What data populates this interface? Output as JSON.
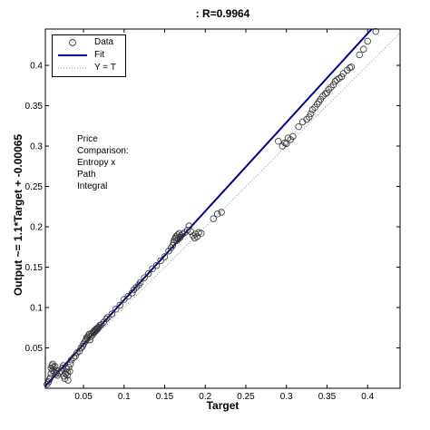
{
  "chart_data": {
    "type": "scatter",
    "title": ": R=0.9964",
    "xlabel": "Target",
    "ylabel": "Output ~= 1.1*Target + -0.00065",
    "xlim": [
      0.003,
      0.44
    ],
    "ylim": [
      0,
      0.445
    ],
    "x_ticks": [
      0.05,
      0.1,
      0.15,
      0.2,
      0.25,
      0.3,
      0.35,
      0.4
    ],
    "y_ticks": [
      0.05,
      0.1,
      0.15,
      0.2,
      0.25,
      0.3,
      0.35,
      0.4
    ],
    "x_tick_labels": [
      "0.05",
      "0.1",
      "0.15",
      "0.2",
      "0.25",
      "0.3",
      "0.35",
      "0.4"
    ],
    "y_tick_labels": [
      "0.05",
      "0.1",
      "0.15",
      "0.2",
      "0.25",
      "0.3",
      "0.35",
      "0.4"
    ],
    "grid": false,
    "legend": {
      "position": "top-left",
      "entries": [
        "Data",
        "Fit",
        "Y = T"
      ]
    },
    "annotation": [
      "Price",
      "Comparison:",
      "Entropy x",
      "Path",
      "Integral"
    ],
    "fit": {
      "slope": 1.1,
      "intercept": -0.00065,
      "color": "#00008b"
    },
    "identity_line_color": "#999999",
    "marker_color": "#333333",
    "series": [
      {
        "name": "Data",
        "points": [
          [
            0.005,
            0.005
          ],
          [
            0.007,
            0.008
          ],
          [
            0.008,
            0.011
          ],
          [
            0.009,
            0.013
          ],
          [
            0.01,
            0.018
          ],
          [
            0.01,
            0.025
          ],
          [
            0.011,
            0.028
          ],
          [
            0.012,
            0.03
          ],
          [
            0.012,
            0.022
          ],
          [
            0.013,
            0.026
          ],
          [
            0.014,
            0.02
          ],
          [
            0.015,
            0.027
          ],
          [
            0.016,
            0.018
          ],
          [
            0.017,
            0.022
          ],
          [
            0.018,
            0.016
          ],
          [
            0.02,
            0.019
          ],
          [
            0.022,
            0.021
          ],
          [
            0.024,
            0.025
          ],
          [
            0.025,
            0.028
          ],
          [
            0.026,
            0.015
          ],
          [
            0.027,
            0.012
          ],
          [
            0.028,
            0.018
          ],
          [
            0.029,
            0.024
          ],
          [
            0.03,
            0.02
          ],
          [
            0.03,
            0.016
          ],
          [
            0.031,
            0.01
          ],
          [
            0.032,
            0.026
          ],
          [
            0.033,
            0.021
          ],
          [
            0.034,
            0.03
          ],
          [
            0.035,
            0.035
          ],
          [
            0.038,
            0.038
          ],
          [
            0.04,
            0.04
          ],
          [
            0.042,
            0.044
          ],
          [
            0.045,
            0.046
          ],
          [
            0.047,
            0.05
          ],
          [
            0.049,
            0.052
          ],
          [
            0.05,
            0.055
          ],
          [
            0.052,
            0.058
          ],
          [
            0.053,
            0.06
          ],
          [
            0.054,
            0.063
          ],
          [
            0.055,
            0.062
          ],
          [
            0.056,
            0.065
          ],
          [
            0.057,
            0.067
          ],
          [
            0.058,
            0.06
          ],
          [
            0.059,
            0.064
          ],
          [
            0.06,
            0.068
          ],
          [
            0.061,
            0.066
          ],
          [
            0.062,
            0.07
          ],
          [
            0.063,
            0.069
          ],
          [
            0.064,
            0.072
          ],
          [
            0.065,
            0.071
          ],
          [
            0.066,
            0.074
          ],
          [
            0.067,
            0.073
          ],
          [
            0.068,
            0.075
          ],
          [
            0.069,
            0.076
          ],
          [
            0.07,
            0.078
          ],
          [
            0.072,
            0.079
          ],
          [
            0.075,
            0.082
          ],
          [
            0.078,
            0.086
          ],
          [
            0.08,
            0.088
          ],
          [
            0.085,
            0.092
          ],
          [
            0.09,
            0.098
          ],
          [
            0.095,
            0.103
          ],
          [
            0.1,
            0.11
          ],
          [
            0.105,
            0.114
          ],
          [
            0.11,
            0.118
          ],
          [
            0.112,
            0.122
          ],
          [
            0.115,
            0.125
          ],
          [
            0.118,
            0.128
          ],
          [
            0.12,
            0.131
          ],
          [
            0.125,
            0.137
          ],
          [
            0.13,
            0.142
          ],
          [
            0.135,
            0.148
          ],
          [
            0.14,
            0.152
          ],
          [
            0.145,
            0.158
          ],
          [
            0.15,
            0.163
          ],
          [
            0.155,
            0.17
          ],
          [
            0.158,
            0.174
          ],
          [
            0.16,
            0.177
          ],
          [
            0.161,
            0.181
          ],
          [
            0.162,
            0.184
          ],
          [
            0.163,
            0.186
          ],
          [
            0.164,
            0.188
          ],
          [
            0.165,
            0.183
          ],
          [
            0.166,
            0.19
          ],
          [
            0.167,
            0.185
          ],
          [
            0.168,
            0.192
          ],
          [
            0.169,
            0.187
          ],
          [
            0.17,
            0.189
          ],
          [
            0.172,
            0.191
          ],
          [
            0.175,
            0.193
          ],
          [
            0.178,
            0.196
          ],
          [
            0.18,
            0.201
          ],
          [
            0.182,
            0.194
          ],
          [
            0.185,
            0.189
          ],
          [
            0.187,
            0.186
          ],
          [
            0.188,
            0.191
          ],
          [
            0.19,
            0.188
          ],
          [
            0.192,
            0.193
          ],
          [
            0.195,
            0.192
          ],
          [
            0.21,
            0.21
          ],
          [
            0.215,
            0.216
          ],
          [
            0.22,
            0.218
          ],
          [
            0.29,
            0.306
          ],
          [
            0.295,
            0.3
          ],
          [
            0.298,
            0.304
          ],
          [
            0.3,
            0.303
          ],
          [
            0.302,
            0.31
          ],
          [
            0.305,
            0.308
          ],
          [
            0.308,
            0.312
          ],
          [
            0.315,
            0.324
          ],
          [
            0.32,
            0.33
          ],
          [
            0.325,
            0.333
          ],
          [
            0.328,
            0.336
          ],
          [
            0.33,
            0.34
          ],
          [
            0.332,
            0.345
          ],
          [
            0.335,
            0.348
          ],
          [
            0.338,
            0.352
          ],
          [
            0.34,
            0.355
          ],
          [
            0.342,
            0.358
          ],
          [
            0.345,
            0.362
          ],
          [
            0.348,
            0.365
          ],
          [
            0.35,
            0.366
          ],
          [
            0.352,
            0.37
          ],
          [
            0.355,
            0.373
          ],
          [
            0.358,
            0.376
          ],
          [
            0.36,
            0.38
          ],
          [
            0.362,
            0.382
          ],
          [
            0.365,
            0.384
          ],
          [
            0.368,
            0.386
          ],
          [
            0.37,
            0.39
          ],
          [
            0.375,
            0.394
          ],
          [
            0.378,
            0.397
          ],
          [
            0.38,
            0.398
          ],
          [
            0.39,
            0.413
          ],
          [
            0.395,
            0.42
          ],
          [
            0.4,
            0.43
          ],
          [
            0.41,
            0.442
          ]
        ]
      }
    ]
  }
}
